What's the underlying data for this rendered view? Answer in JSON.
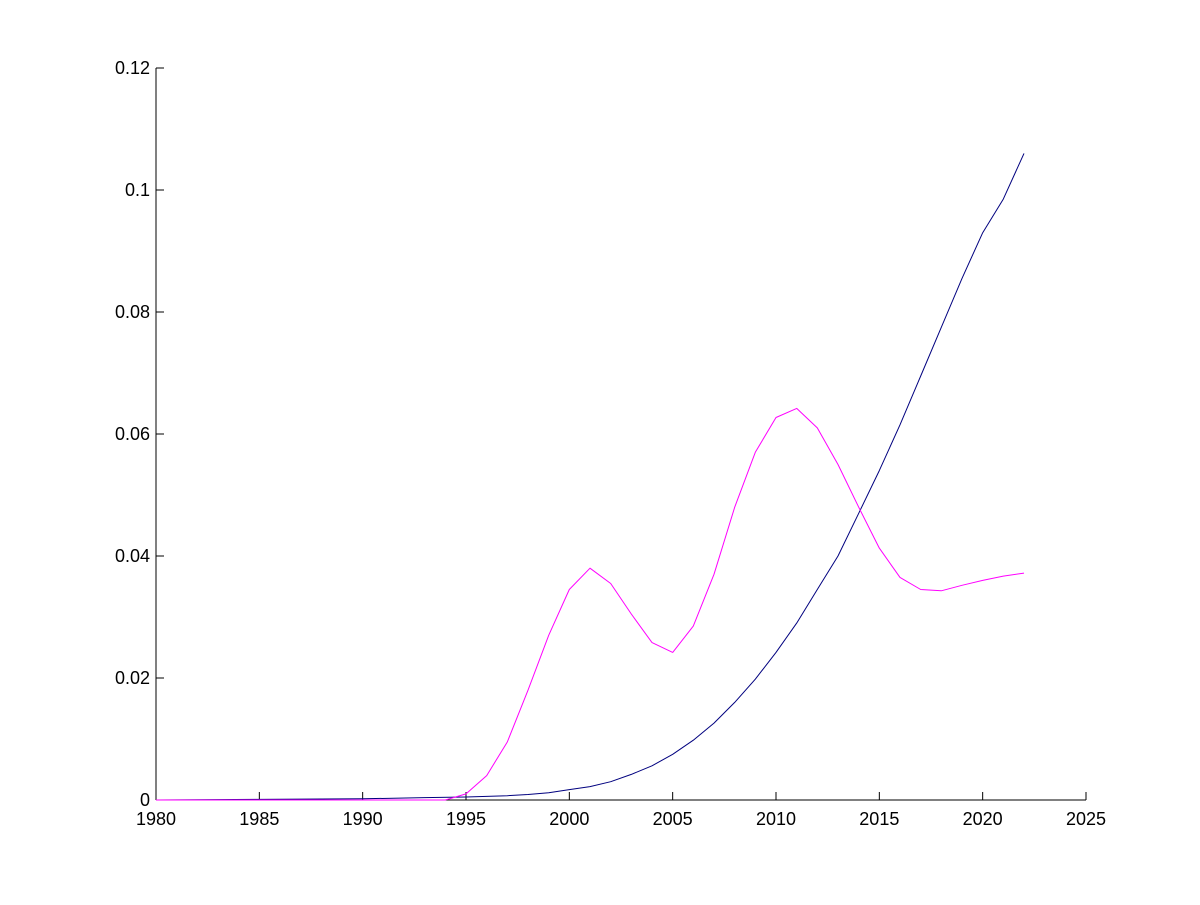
{
  "chart_data": {
    "type": "line",
    "title": "",
    "xlabel": "",
    "ylabel": "",
    "xlim": [
      1980,
      2025
    ],
    "ylim": [
      0,
      0.12
    ],
    "x_ticks": [
      1980,
      1985,
      1990,
      1995,
      2000,
      2005,
      2010,
      2015,
      2020,
      2025
    ],
    "y_ticks": [
      0,
      0.02,
      0.04,
      0.06,
      0.08,
      0.1,
      0.12
    ],
    "x_tick_labels": [
      "1980",
      "1985",
      "1990",
      "1995",
      "2000",
      "2005",
      "2010",
      "2015",
      "2020",
      "2025"
    ],
    "y_tick_labels": [
      "0",
      "0.02",
      "0.04",
      "0.06",
      "0.08",
      "0.1",
      "0.12"
    ],
    "grid": false,
    "legend": "none",
    "series": [
      {
        "color": "#00007f",
        "x": [
          1980,
          1985,
          1990,
          1993,
          1995,
          1997,
          1998,
          1999,
          2000,
          2001,
          2002,
          2003,
          2004,
          2005,
          2006,
          2007,
          2008,
          2009,
          2010,
          2011,
          2012,
          2013,
          2014,
          2015,
          2016,
          2017,
          2018,
          2019,
          2020,
          2021,
          2022
        ],
        "y": [
          0,
          0.0001,
          0.0002,
          0.0004,
          0.0005,
          0.0007,
          0.0009,
          0.0012,
          0.0017,
          0.0022,
          0.003,
          0.0042,
          0.0056,
          0.0075,
          0.0098,
          0.0126,
          0.016,
          0.0198,
          0.0242,
          0.029,
          0.0345,
          0.04,
          0.047,
          0.054,
          0.0615,
          0.0695,
          0.0775,
          0.0855,
          0.093,
          0.0985,
          0.106
        ]
      },
      {
        "color": "#ff00ff",
        "x": [
          1980,
          1985,
          1990,
          1994,
          1995,
          1996,
          1997,
          1998,
          1999,
          2000,
          2001,
          2002,
          2003,
          2004,
          2005,
          2006,
          2007,
          2008,
          2009,
          2010,
          2011,
          2012,
          2013,
          2014,
          2015,
          2016,
          2017,
          2018,
          2019,
          2020,
          2021,
          2022
        ],
        "y": [
          0,
          0,
          0,
          0,
          0.001,
          0.004,
          0.0095,
          0.018,
          0.027,
          0.0345,
          0.038,
          0.0355,
          0.0305,
          0.0258,
          0.0242,
          0.0285,
          0.037,
          0.048,
          0.057,
          0.0627,
          0.0642,
          0.061,
          0.055,
          0.048,
          0.0413,
          0.0365,
          0.0345,
          0.0343,
          0.0352,
          0.036,
          0.0367,
          0.0372
        ]
      }
    ]
  }
}
